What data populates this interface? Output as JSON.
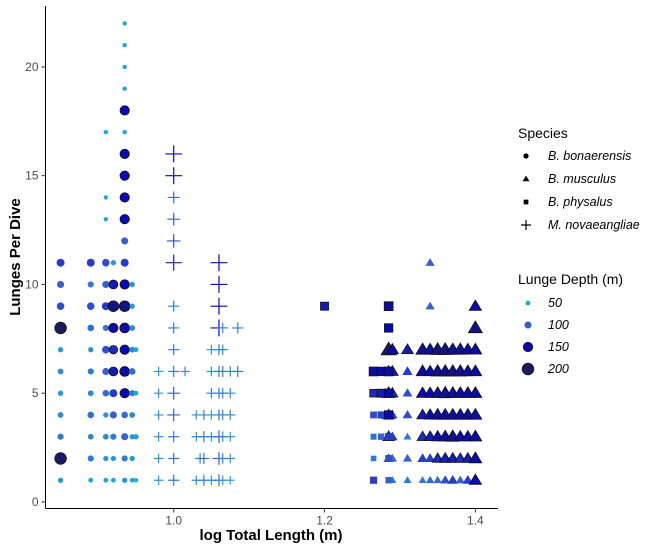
{
  "chart_data": {
    "type": "scatter",
    "title": "",
    "xlabel": "log Total Length (m)",
    "ylabel": "Lunges Per Dive",
    "xlim": [
      0.83,
      1.43
    ],
    "ylim": [
      -0.3,
      22.8
    ],
    "xticks": [
      1.0,
      1.2,
      1.4
    ],
    "xtick_labels": [
      "1.0",
      "1.2",
      "1.4"
    ],
    "yticks": [
      0,
      5,
      10,
      15,
      20
    ],
    "ytick_labels": [
      "0",
      "5",
      "10",
      "15",
      "20"
    ],
    "grid": false,
    "legend_position": "right",
    "legends": {
      "species": {
        "title": "Species",
        "entries": [
          {
            "label": "B. bonaerensis",
            "shape": "circle"
          },
          {
            "label": "B. musculus",
            "shape": "triangle"
          },
          {
            "label": "B. physalus",
            "shape": "square"
          },
          {
            "label": "M. novaeangliae",
            "shape": "plus"
          }
        ]
      },
      "depth": {
        "title": "Lunge Depth (m)",
        "entries": [
          {
            "label": "50",
            "depth": 50
          },
          {
            "label": "100",
            "depth": 100
          },
          {
            "label": "150",
            "depth": 150
          },
          {
            "label": "200",
            "depth": 200
          }
        ]
      }
    },
    "series": [
      {
        "name": "B. bonaerensis",
        "shape": "circle",
        "points": [
          [
            0.85,
            1,
            60
          ],
          [
            0.85,
            2,
            200
          ],
          [
            0.85,
            3,
            80
          ],
          [
            0.85,
            4,
            70
          ],
          [
            0.85,
            5,
            60
          ],
          [
            0.85,
            6,
            70
          ],
          [
            0.85,
            7,
            60
          ],
          [
            0.85,
            8,
            200
          ],
          [
            0.85,
            9,
            110
          ],
          [
            0.85,
            10,
            100
          ],
          [
            0.85,
            11,
            120
          ],
          [
            0.89,
            1,
            50
          ],
          [
            0.89,
            2,
            80
          ],
          [
            0.89,
            3,
            70
          ],
          [
            0.89,
            4,
            90
          ],
          [
            0.89,
            5,
            70
          ],
          [
            0.89,
            6,
            80
          ],
          [
            0.89,
            7,
            60
          ],
          [
            0.89,
            8,
            90
          ],
          [
            0.89,
            9,
            110
          ],
          [
            0.89,
            10,
            80
          ],
          [
            0.89,
            11,
            120
          ],
          [
            0.91,
            1,
            50
          ],
          [
            0.91,
            2,
            60
          ],
          [
            0.91,
            3,
            70
          ],
          [
            0.91,
            4,
            60
          ],
          [
            0.91,
            5,
            90
          ],
          [
            0.91,
            6,
            100
          ],
          [
            0.91,
            7,
            110
          ],
          [
            0.91,
            8,
            80
          ],
          [
            0.91,
            9,
            120
          ],
          [
            0.91,
            10,
            100
          ],
          [
            0.91,
            11,
            110
          ],
          [
            0.91,
            13,
            40
          ],
          [
            0.91,
            14,
            40
          ],
          [
            0.91,
            17,
            40
          ],
          [
            0.92,
            1,
            50
          ],
          [
            0.92,
            2,
            60
          ],
          [
            0.92,
            3,
            80
          ],
          [
            0.92,
            4,
            100
          ],
          [
            0.92,
            5,
            120
          ],
          [
            0.92,
            6,
            140
          ],
          [
            0.92,
            7,
            130
          ],
          [
            0.92,
            8,
            150
          ],
          [
            0.92,
            9,
            180
          ],
          [
            0.92,
            10,
            140
          ],
          [
            0.92,
            11,
            60
          ],
          [
            0.935,
            1,
            60
          ],
          [
            0.935,
            2,
            80
          ],
          [
            0.935,
            3,
            100
          ],
          [
            0.935,
            4,
            90
          ],
          [
            0.935,
            5,
            150
          ],
          [
            0.935,
            6,
            160
          ],
          [
            0.935,
            7,
            150
          ],
          [
            0.935,
            8,
            160
          ],
          [
            0.935,
            9,
            180
          ],
          [
            0.935,
            10,
            150
          ],
          [
            0.935,
            11,
            120
          ],
          [
            0.935,
            12,
            100
          ],
          [
            0.935,
            13,
            150
          ],
          [
            0.935,
            14,
            150
          ],
          [
            0.935,
            15,
            150
          ],
          [
            0.935,
            16,
            150
          ],
          [
            0.935,
            17,
            40
          ],
          [
            0.935,
            18,
            150
          ],
          [
            0.935,
            19,
            40
          ],
          [
            0.935,
            20,
            40
          ],
          [
            0.935,
            21,
            40
          ],
          [
            0.935,
            22,
            40
          ],
          [
            0.945,
            1,
            50
          ],
          [
            0.945,
            2,
            60
          ],
          [
            0.945,
            3,
            60
          ],
          [
            0.945,
            4,
            70
          ],
          [
            0.945,
            5,
            80
          ],
          [
            0.945,
            6,
            90
          ],
          [
            0.945,
            7,
            70
          ],
          [
            0.945,
            8,
            70
          ],
          [
            0.945,
            9,
            60
          ],
          [
            0.945,
            10,
            60
          ],
          [
            0.95,
            1,
            40
          ],
          [
            0.95,
            3,
            60
          ],
          [
            0.95,
            5,
            50
          ],
          [
            0.95,
            7,
            50
          ]
        ]
      },
      {
        "name": "B. musculus",
        "shape": "triangle",
        "points": [
          [
            1.285,
            2,
            120
          ],
          [
            1.285,
            3,
            140
          ],
          [
            1.285,
            4,
            140
          ],
          [
            1.285,
            5,
            160
          ],
          [
            1.285,
            6,
            140
          ],
          [
            1.285,
            7,
            200
          ],
          [
            1.29,
            1,
            80
          ],
          [
            1.29,
            2,
            100
          ],
          [
            1.29,
            3,
            120
          ],
          [
            1.29,
            4,
            120
          ],
          [
            1.29,
            5,
            130
          ],
          [
            1.29,
            6,
            140
          ],
          [
            1.29,
            7,
            150
          ],
          [
            1.31,
            1,
            80
          ],
          [
            1.31,
            2,
            100
          ],
          [
            1.31,
            3,
            80
          ],
          [
            1.31,
            4,
            110
          ],
          [
            1.31,
            5,
            110
          ],
          [
            1.31,
            6,
            120
          ],
          [
            1.31,
            7,
            140
          ],
          [
            1.33,
            1,
            80
          ],
          [
            1.33,
            2,
            120
          ],
          [
            1.33,
            3,
            130
          ],
          [
            1.33,
            4,
            140
          ],
          [
            1.33,
            5,
            150
          ],
          [
            1.33,
            6,
            160
          ],
          [
            1.33,
            7,
            170
          ],
          [
            1.34,
            1,
            90
          ],
          [
            1.34,
            2,
            120
          ],
          [
            1.34,
            3,
            140
          ],
          [
            1.34,
            4,
            150
          ],
          [
            1.34,
            5,
            150
          ],
          [
            1.34,
            6,
            150
          ],
          [
            1.34,
            7,
            160
          ],
          [
            1.34,
            9,
            100
          ],
          [
            1.34,
            11,
            100
          ],
          [
            1.35,
            1,
            90
          ],
          [
            1.35,
            2,
            130
          ],
          [
            1.35,
            3,
            150
          ],
          [
            1.35,
            4,
            160
          ],
          [
            1.35,
            5,
            160
          ],
          [
            1.35,
            6,
            170
          ],
          [
            1.35,
            7,
            180
          ],
          [
            1.36,
            1,
            110
          ],
          [
            1.36,
            2,
            140
          ],
          [
            1.36,
            3,
            160
          ],
          [
            1.36,
            4,
            160
          ],
          [
            1.36,
            5,
            170
          ],
          [
            1.36,
            6,
            170
          ],
          [
            1.36,
            7,
            180
          ],
          [
            1.37,
            1,
            120
          ],
          [
            1.37,
            2,
            140
          ],
          [
            1.37,
            3,
            170
          ],
          [
            1.37,
            4,
            160
          ],
          [
            1.37,
            5,
            160
          ],
          [
            1.37,
            6,
            170
          ],
          [
            1.37,
            7,
            170
          ],
          [
            1.38,
            1,
            100
          ],
          [
            1.38,
            2,
            130
          ],
          [
            1.38,
            3,
            150
          ],
          [
            1.38,
            4,
            160
          ],
          [
            1.38,
            5,
            160
          ],
          [
            1.38,
            6,
            170
          ],
          [
            1.38,
            7,
            170
          ],
          [
            1.39,
            1,
            120
          ],
          [
            1.39,
            2,
            140
          ],
          [
            1.39,
            3,
            150
          ],
          [
            1.39,
            4,
            160
          ],
          [
            1.39,
            5,
            160
          ],
          [
            1.39,
            6,
            160
          ],
          [
            1.39,
            7,
            160
          ],
          [
            1.4,
            1,
            150
          ],
          [
            1.4,
            2,
            160
          ],
          [
            1.4,
            3,
            160
          ],
          [
            1.4,
            4,
            160
          ],
          [
            1.4,
            5,
            160
          ],
          [
            1.4,
            6,
            160
          ],
          [
            1.4,
            7,
            160
          ],
          [
            1.4,
            8,
            180
          ],
          [
            1.4,
            9,
            150
          ]
        ]
      },
      {
        "name": "B. physalus",
        "shape": "square",
        "points": [
          [
            1.2,
            9,
            140
          ],
          [
            1.265,
            1,
            120
          ],
          [
            1.265,
            2,
            80
          ],
          [
            1.265,
            3,
            90
          ],
          [
            1.265,
            4,
            110
          ],
          [
            1.265,
            5,
            130
          ],
          [
            1.265,
            6,
            160
          ],
          [
            1.275,
            3,
            100
          ],
          [
            1.275,
            4,
            120
          ],
          [
            1.275,
            5,
            140
          ],
          [
            1.275,
            6,
            150
          ],
          [
            1.285,
            1,
            100
          ],
          [
            1.285,
            2,
            110
          ],
          [
            1.285,
            3,
            120
          ],
          [
            1.285,
            4,
            150
          ],
          [
            1.285,
            5,
            150
          ],
          [
            1.285,
            6,
            160
          ],
          [
            1.285,
            8,
            150
          ],
          [
            1.285,
            9,
            160
          ]
        ]
      },
      {
        "name": "M. novaeangliae",
        "shape": "plus",
        "points": [
          [
            0.98,
            1,
            60
          ],
          [
            0.98,
            2,
            60
          ],
          [
            0.98,
            3,
            60
          ],
          [
            0.98,
            4,
            60
          ],
          [
            0.98,
            5,
            60
          ],
          [
            0.98,
            6,
            60
          ],
          [
            1.0,
            1,
            80
          ],
          [
            1.0,
            2,
            80
          ],
          [
            1.0,
            3,
            80
          ],
          [
            1.0,
            4,
            100
          ],
          [
            1.0,
            5,
            100
          ],
          [
            1.0,
            6,
            80
          ],
          [
            1.0,
            7,
            80
          ],
          [
            1.0,
            8,
            80
          ],
          [
            1.0,
            9,
            80
          ],
          [
            1.0,
            11,
            140
          ],
          [
            1.0,
            12,
            110
          ],
          [
            1.0,
            13,
            100
          ],
          [
            1.0,
            14,
            90
          ],
          [
            1.0,
            15,
            150
          ],
          [
            1.0,
            16,
            150
          ],
          [
            1.015,
            6,
            60
          ],
          [
            1.03,
            1,
            60
          ],
          [
            1.03,
            3,
            60
          ],
          [
            1.03,
            4,
            60
          ],
          [
            1.035,
            2,
            70
          ],
          [
            1.04,
            1,
            80
          ],
          [
            1.04,
            2,
            80
          ],
          [
            1.04,
            3,
            80
          ],
          [
            1.04,
            4,
            70
          ],
          [
            1.05,
            1,
            60
          ],
          [
            1.05,
            3,
            60
          ],
          [
            1.05,
            4,
            60
          ],
          [
            1.05,
            5,
            70
          ],
          [
            1.05,
            6,
            60
          ],
          [
            1.05,
            7,
            60
          ],
          [
            1.06,
            1,
            90
          ],
          [
            1.06,
            2,
            100
          ],
          [
            1.06,
            3,
            100
          ],
          [
            1.06,
            4,
            80
          ],
          [
            1.06,
            5,
            80
          ],
          [
            1.06,
            6,
            80
          ],
          [
            1.06,
            7,
            80
          ],
          [
            1.06,
            8,
            150
          ],
          [
            1.06,
            9,
            150
          ],
          [
            1.06,
            10,
            150
          ],
          [
            1.06,
            11,
            150
          ],
          [
            1.065,
            1,
            60
          ],
          [
            1.065,
            2,
            70
          ],
          [
            1.065,
            3,
            70
          ],
          [
            1.065,
            4,
            70
          ],
          [
            1.065,
            5,
            70
          ],
          [
            1.065,
            6,
            80
          ],
          [
            1.065,
            7,
            70
          ],
          [
            1.065,
            8,
            70
          ],
          [
            1.075,
            1,
            50
          ],
          [
            1.075,
            2,
            60
          ],
          [
            1.075,
            3,
            60
          ],
          [
            1.075,
            4,
            70
          ],
          [
            1.075,
            5,
            70
          ],
          [
            1.075,
            6,
            70
          ],
          [
            1.085,
            6,
            80
          ],
          [
            1.085,
            8,
            80
          ]
        ]
      }
    ]
  }
}
